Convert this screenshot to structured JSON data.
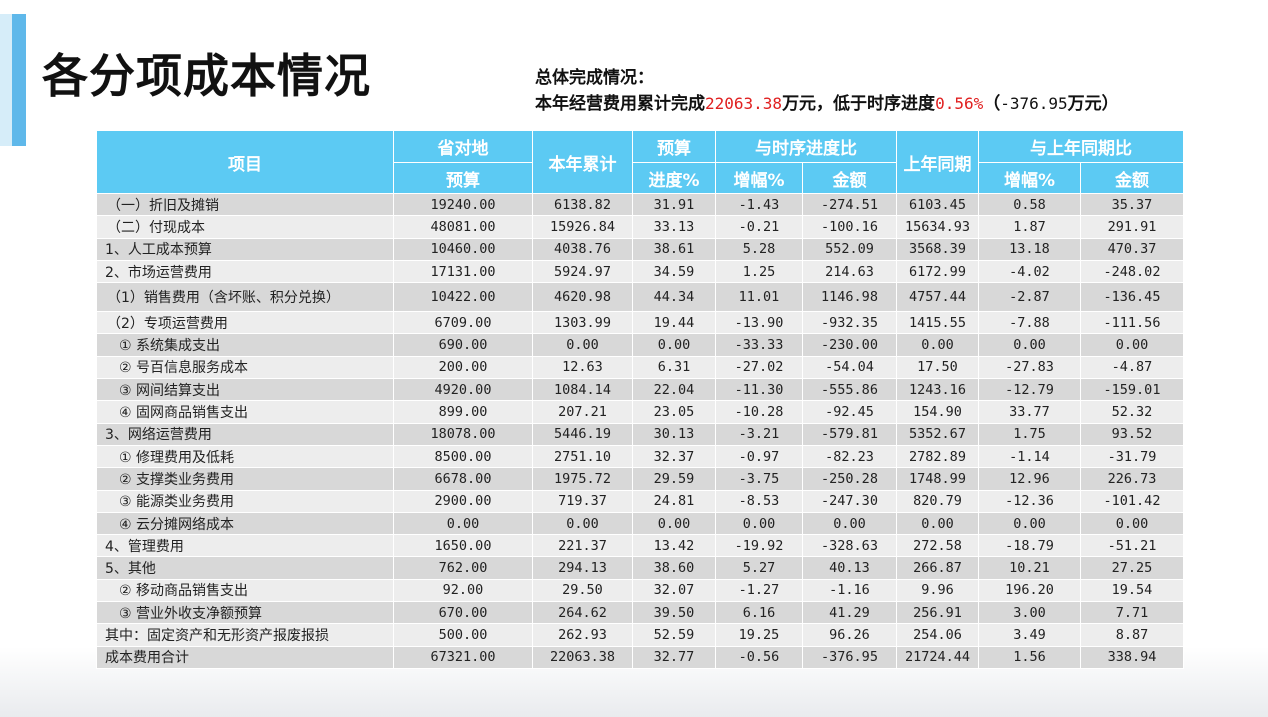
{
  "page": {
    "title": "各分项成本情况",
    "summary_line1": "总体完成情况：",
    "summary_line2_prefix": "本年经营费用累计完成",
    "summary_line2_value": "22063.38",
    "summary_line2_mid": "万元，低于时序进度",
    "summary_line2_pct": "0.56%",
    "summary_line2_suffix_open": "（",
    "summary_line2_amount": "-376.95",
    "summary_line2_suffix_close": "万元）"
  },
  "colors": {
    "accent": "#5fb8ea",
    "header": "#5ccaf3",
    "highlight": "#e02020"
  },
  "table": {
    "headers": {
      "item": "项目",
      "province": "省对地",
      "province_sub": "预算",
      "ytd": "本年累计",
      "budget": "预算",
      "budget_sub": "进度%",
      "timing": "与时序进度比",
      "timing_inc": "增幅%",
      "timing_amt": "金额",
      "last_year": "上年同期",
      "yoy": "与上年同期比",
      "yoy_inc": "增幅%",
      "yoy_amt": "金额"
    },
    "rows": [
      [
        "（一）折旧及摊销",
        "19240.00",
        "6138.82",
        "31.91",
        "-1.43",
        "-274.51",
        "6103.45",
        "0.58",
        "35.37"
      ],
      [
        "（二）付现成本",
        "48081.00",
        "15926.84",
        "33.13",
        "-0.21",
        "-100.16",
        "15634.93",
        "1.87",
        "291.91"
      ],
      [
        "1、人工成本预算",
        "10460.00",
        "4038.76",
        "38.61",
        "5.28",
        "552.09",
        "3568.39",
        "13.18",
        "470.37"
      ],
      [
        "2、市场运营费用",
        "17131.00",
        "5924.97",
        "34.59",
        "1.25",
        "214.63",
        "6172.99",
        "-4.02",
        "-248.02"
      ],
      [
        "（1）销售费用（含坏账、积分兑换）",
        "10422.00",
        "4620.98",
        "44.34",
        "11.01",
        "1146.98",
        "4757.44",
        "-2.87",
        "-136.45"
      ],
      [
        "（2）专项运营费用",
        "6709.00",
        "1303.99",
        "19.44",
        "-13.90",
        "-932.35",
        "1415.55",
        "-7.88",
        "-111.56"
      ],
      [
        "① 系统集成支出",
        "690.00",
        "0.00",
        "0.00",
        "-33.33",
        "-230.00",
        "0.00",
        "0.00",
        "0.00"
      ],
      [
        "② 号百信息服务成本",
        "200.00",
        "12.63",
        "6.31",
        "-27.02",
        "-54.04",
        "17.50",
        "-27.83",
        "-4.87"
      ],
      [
        "③ 网间结算支出",
        "4920.00",
        "1084.14",
        "22.04",
        "-11.30",
        "-555.86",
        "1243.16",
        "-12.79",
        "-159.01"
      ],
      [
        "④ 固网商品销售支出",
        "899.00",
        "207.21",
        "23.05",
        "-10.28",
        "-92.45",
        "154.90",
        "33.77",
        "52.32"
      ],
      [
        "3、网络运营费用",
        "18078.00",
        "5446.19",
        "30.13",
        "-3.21",
        "-579.81",
        "5352.67",
        "1.75",
        "93.52"
      ],
      [
        "① 修理费用及低耗",
        "8500.00",
        "2751.10",
        "32.37",
        "-0.97",
        "-82.23",
        "2782.89",
        "-1.14",
        "-31.79"
      ],
      [
        "② 支撑类业务费用",
        "6678.00",
        "1975.72",
        "29.59",
        "-3.75",
        "-250.28",
        "1748.99",
        "12.96",
        "226.73"
      ],
      [
        "③ 能源类业务费用",
        "2900.00",
        "719.37",
        "24.81",
        "-8.53",
        "-247.30",
        "820.79",
        "-12.36",
        "-101.42"
      ],
      [
        "④ 云分摊网络成本",
        "0.00",
        "0.00",
        "0.00",
        "0.00",
        "0.00",
        "0.00",
        "0.00",
        "0.00"
      ],
      [
        "4、管理费用",
        "1650.00",
        "221.37",
        "13.42",
        "-19.92",
        "-328.63",
        "272.58",
        "-18.79",
        "-51.21"
      ],
      [
        "5、其他",
        "762.00",
        "294.13",
        "38.60",
        "5.27",
        "40.13",
        "266.87",
        "10.21",
        "27.25"
      ],
      [
        "② 移动商品销售支出",
        "92.00",
        "29.50",
        "32.07",
        "-1.27",
        "-1.16",
        "9.96",
        "196.20",
        "19.54"
      ],
      [
        "③ 营业外收支净额预算",
        "670.00",
        "264.62",
        "39.50",
        "6.16",
        "41.29",
        "256.91",
        "3.00",
        "7.71"
      ],
      [
        "其中：固定资产和无形资产报废报损",
        "500.00",
        "262.93",
        "52.59",
        "19.25",
        "96.26",
        "254.06",
        "3.49",
        "8.87"
      ],
      [
        "成本费用合计",
        "67321.00",
        "22063.38",
        "32.77",
        "-0.56",
        "-376.95",
        "21724.44",
        "1.56",
        "338.94"
      ]
    ],
    "row_indent": [
      1,
      1,
      0,
      0,
      1,
      1,
      2,
      2,
      2,
      2,
      0,
      2,
      2,
      2,
      2,
      0,
      0,
      2,
      2,
      0,
      0
    ]
  }
}
